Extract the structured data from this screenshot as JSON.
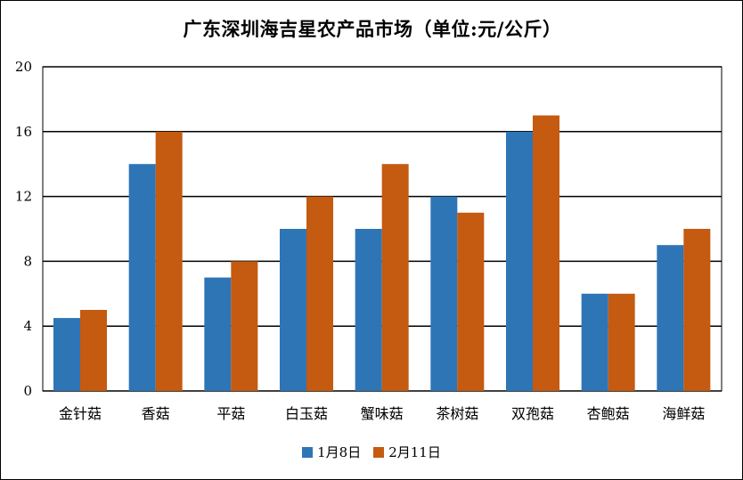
{
  "chart_data": {
    "type": "bar",
    "title": "广东深圳海吉星农产品市场（单位:元/公斤）",
    "categories": [
      "金针菇",
      "香菇",
      "平菇",
      "白玉菇",
      "蟹味菇",
      "茶树菇",
      "双孢菇",
      "杏鲍菇",
      "海鲜菇"
    ],
    "series": [
      {
        "name": "1月8日",
        "color": "#2e75b6",
        "values": [
          4.5,
          14,
          7,
          10,
          10,
          12,
          16,
          6,
          9
        ]
      },
      {
        "name": "2月11日",
        "color": "#c55a11",
        "values": [
          5,
          16,
          8,
          12,
          14,
          11,
          17,
          6,
          10
        ]
      }
    ],
    "ylim": [
      0,
      20
    ],
    "yticks": [
      0,
      4,
      8,
      12,
      16,
      20
    ],
    "grid": true,
    "legend_position": "bottom",
    "xlabel": "",
    "ylabel": ""
  }
}
